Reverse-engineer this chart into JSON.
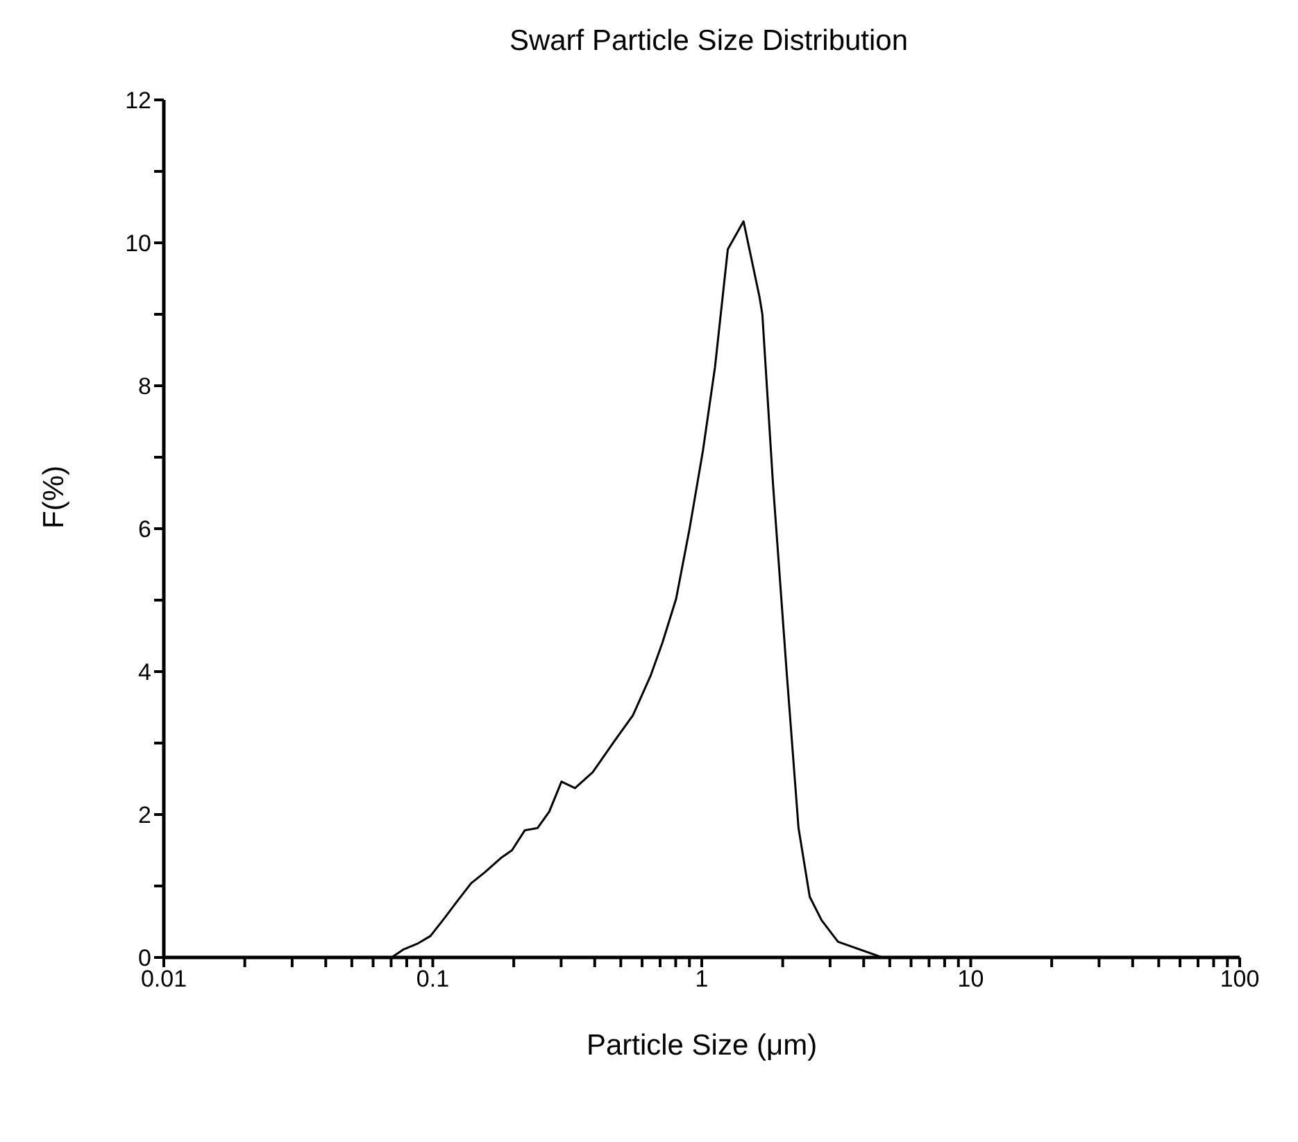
{
  "chart_data": {
    "type": "line",
    "title": "Swarf Particle Size Distribution",
    "xlabel": "Particle Size (μm)",
    "ylabel": "F(%)",
    "log": "x",
    "grid": false,
    "legend": false,
    "marker": "none",
    "line_style": "solid",
    "x": [
      0.0703,
      0.0776,
      0.0874,
      0.098,
      0.11,
      0.124,
      0.139,
      0.156,
      0.179,
      0.197,
      0.22,
      0.245,
      0.271,
      0.301,
      0.338,
      0.393,
      0.472,
      0.555,
      0.645,
      0.715,
      0.803,
      0.901,
      1.01,
      1.12,
      1.25,
      1.43,
      1.64,
      1.68,
      1.84,
      2.07,
      2.29,
      2.52,
      2.79,
      3.21,
      4.69
    ],
    "series": [
      {
        "color": "#000000",
        "values": [
          0,
          0.11,
          0.19,
          0.3,
          0.54,
          0.8,
          1.04,
          1.19,
          1.39,
          1.5,
          1.78,
          1.81,
          2.04,
          2.46,
          2.37,
          2.59,
          3.02,
          3.39,
          3.94,
          4.41,
          5.02,
          6.0,
          7.09,
          8.26,
          9.91,
          10.3,
          9.24,
          9.0,
          6.63,
          3.98,
          1.81,
          0.85,
          0.52,
          0.22,
          0
        ]
      }
    ],
    "xlim": [
      0.01,
      100
    ],
    "xticks": [
      0.01,
      {
        "value": 0.02,
        "label": null
      },
      {
        "value": 0.03,
        "label": null
      },
      {
        "value": 0.04,
        "label": null
      },
      {
        "value": 0.05,
        "label": null
      },
      {
        "value": 0.06,
        "label": null
      },
      {
        "value": 0.07,
        "label": null
      },
      {
        "value": 0.08,
        "label": null
      },
      {
        "value": 0.09,
        "label": null
      },
      0.1,
      {
        "value": 0.2,
        "label": null
      },
      {
        "value": 0.3,
        "label": null
      },
      {
        "value": 0.4,
        "label": null
      },
      {
        "value": 0.5,
        "label": null
      },
      {
        "value": 0.6,
        "label": null
      },
      {
        "value": 0.7,
        "label": null
      },
      {
        "value": 0.8,
        "label": null
      },
      {
        "value": 0.9,
        "label": null
      },
      1,
      {
        "value": 2,
        "label": null
      },
      {
        "value": 3,
        "label": null
      },
      {
        "value": 4,
        "label": null
      },
      {
        "value": 5,
        "label": null
      },
      {
        "value": 6,
        "label": null
      },
      {
        "value": 7,
        "label": null
      },
      {
        "value": 8,
        "label": null
      },
      {
        "value": 9,
        "label": null
      },
      10,
      {
        "value": 20,
        "label": null
      },
      {
        "value": 30,
        "label": null
      },
      {
        "value": 40,
        "label": null
      },
      {
        "value": 50,
        "label": null
      },
      {
        "value": 60,
        "label": null
      },
      {
        "value": 70,
        "label": null
      },
      {
        "value": 80,
        "label": null
      },
      {
        "value": 90,
        "label": null
      },
      100
    ],
    "ylim": [
      0,
      12
    ],
    "yticks": [
      0,
      {
        "value": 1,
        "label": null
      },
      2,
      {
        "value": 3,
        "label": null
      },
      4,
      {
        "value": 5,
        "label": null
      },
      6,
      {
        "value": 7,
        "label": null
      },
      8,
      {
        "value": 9,
        "label": null
      },
      10,
      {
        "value": 11,
        "label": null
      },
      12
    ]
  }
}
